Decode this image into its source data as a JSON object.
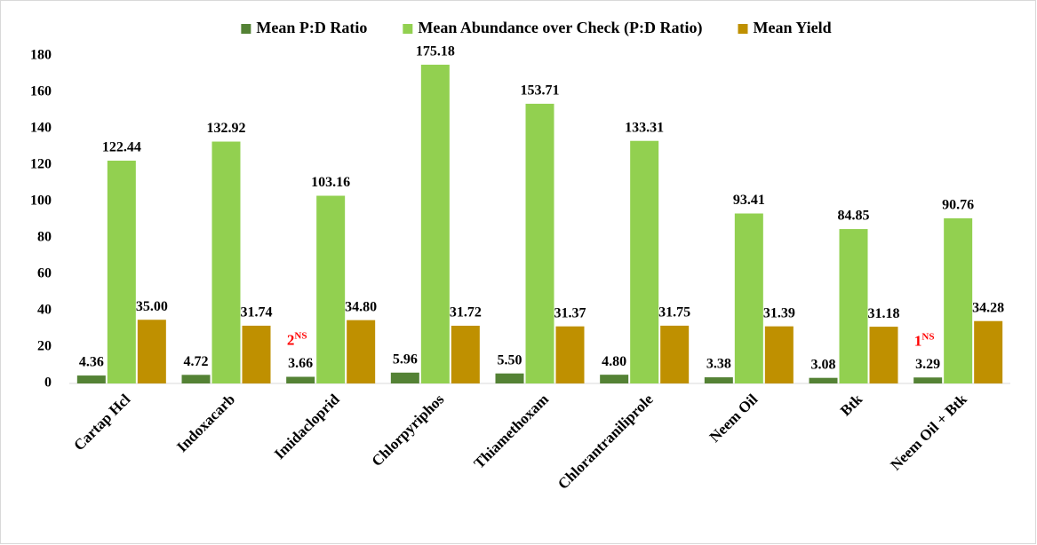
{
  "chart_data": {
    "type": "bar",
    "categories": [
      "Cartap Hcl",
      "Indoxacarb",
      "Imidacloprid",
      "Chlorpyriphos",
      "Thiamethoxam",
      "Chlorantraniliprole",
      "Neem Oil",
      "Btk",
      "Neem Oil + Btk"
    ],
    "series": [
      {
        "name": "Mean P:D Ratio",
        "color": "#548235",
        "values": [
          4.36,
          4.72,
          3.66,
          5.96,
          5.5,
          4.8,
          3.38,
          3.08,
          3.29
        ],
        "value_labels": [
          "4.36",
          "4.72",
          "3.66",
          "5.96",
          "5.50",
          "4.80",
          "3.38",
          "3.08",
          "3.29"
        ]
      },
      {
        "name": "Mean Abundance over Check (P:D Ratio)",
        "color": "#92d050",
        "values": [
          122.44,
          132.92,
          103.16,
          175.18,
          153.71,
          133.31,
          93.41,
          84.85,
          90.76
        ],
        "value_labels": [
          "122.44",
          "132.92",
          "103.16",
          "175.18",
          "153.71",
          "133.31",
          "93.41",
          "84.85",
          "90.76"
        ]
      },
      {
        "name": "Mean Yield",
        "color": "#bf9000",
        "values": [
          35,
          31.74,
          34.8,
          31.72,
          31.37,
          31.75,
          31.39,
          31.18,
          34.28
        ],
        "value_labels": [
          "35.00",
          "31.74",
          "34.80",
          "31.72",
          "31.37",
          "31.75",
          "31.39",
          "31.18",
          "34.28"
        ]
      }
    ],
    "annotations": [
      {
        "text": "2",
        "superscript": "NS",
        "category": "Imidacloprid",
        "color": "#ff0000"
      },
      {
        "text": "1",
        "superscript": "NS",
        "category": "Neem Oil + Btk",
        "color": "#ff0000"
      }
    ],
    "ylim": [
      0,
      180
    ],
    "yticks": [
      0,
      20,
      40,
      60,
      80,
      100,
      120,
      140,
      160,
      180
    ],
    "grid": false,
    "legend": "top"
  }
}
